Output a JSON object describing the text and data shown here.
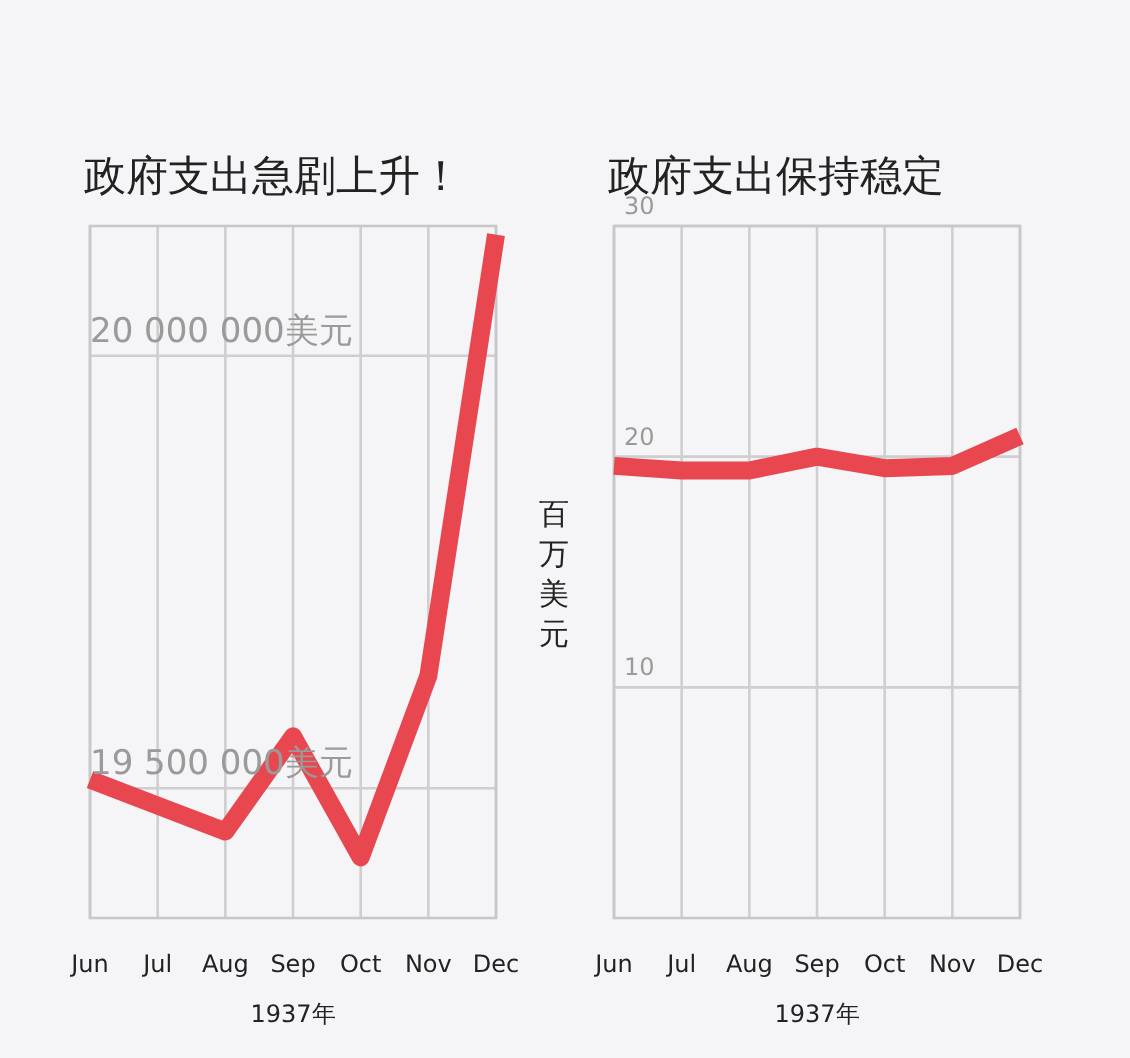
{
  "chart_data": [
    {
      "type": "line",
      "title": "政府支出急剧上升！",
      "xlabel": "1937年",
      "categories": [
        "Jun",
        "Jul",
        "Aug",
        "Sep",
        "Oct",
        "Nov",
        "Dec"
      ],
      "series": [
        {
          "color": "#e84750",
          "values": [
            19510000,
            19480000,
            19450000,
            19560000,
            19420000,
            19630000,
            20140000
          ]
        }
      ],
      "ylim": [
        19350000,
        20150000
      ],
      "yticks": [
        {
          "value": 19500000,
          "label": "19 500 000美元"
        },
        {
          "value": 20000000,
          "label": "20 000 000美元"
        }
      ],
      "grid": true,
      "marker": "none",
      "line_style": "solid"
    },
    {
      "type": "line",
      "title": "政府支出保持稳定",
      "xlabel": "1937年",
      "ylabel": "百万美元",
      "categories": [
        "Jun",
        "Jul",
        "Aug",
        "Sep",
        "Oct",
        "Nov",
        "Dec"
      ],
      "series": [
        {
          "color": "#e84750",
          "values": [
            19.6,
            19.4,
            19.4,
            20.0,
            19.5,
            19.6,
            20.9
          ]
        }
      ],
      "ylim": [
        0,
        30
      ],
      "yticks": [
        10,
        20,
        30
      ],
      "grid": true,
      "marker": "none",
      "line_style": "solid"
    }
  ]
}
